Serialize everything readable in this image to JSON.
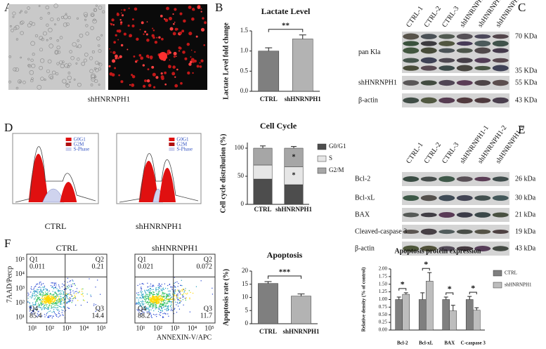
{
  "panels": {
    "A": {
      "label": "A",
      "caption": "shHNRNPH1"
    },
    "B": {
      "label": "B"
    },
    "C": {
      "label": "C",
      "lanes": [
        "CTRL-1",
        "CTRL-2",
        "CTRL-3",
        "shHNRNPH1-1",
        "shHNRNPH1-2",
        "shHNRNPH1-3"
      ],
      "rows": [
        "pan Kla",
        "shHNRNPH1",
        "β-actin"
      ],
      "sizes": [
        "70 KDa",
        "35 KDa",
        "55 KDa",
        "43 KDa"
      ]
    },
    "D": {
      "label": "D",
      "legend": [
        "G0G1",
        "G2M",
        "S-Phase"
      ],
      "captions": [
        "CTRL",
        "shHNRNPH1"
      ]
    },
    "E": {
      "label": "E",
      "lanes": [
        "CTRL-1",
        "CTRL-2",
        "CTRL-3",
        "shHNRNPH1-1",
        "shHNRNPH1-2",
        "shHNRNPH1-3"
      ],
      "rows": [
        "Bcl-2",
        "Bcl-xL",
        "BAX",
        "Cleaved-caspase 3",
        "β-actin"
      ],
      "sizes": [
        "26 kDa",
        "30 kDa",
        "21 kDa",
        "19 kDa",
        "43 kDa"
      ]
    },
    "F": {
      "label": "F",
      "ylabel": "7AAD/Percp",
      "xlabel": "ANNEXIN-V/APC",
      "ticks": [
        "10¹",
        "10²",
        "10³",
        "10⁴",
        "10⁵"
      ],
      "plots": [
        {
          "title": "CTRL",
          "quadrants": [
            [
              "Q1",
              0.011
            ],
            [
              "Q2",
              0.21
            ],
            [
              "Q3",
              14.4
            ],
            [
              "Q4",
              85.4
            ]
          ]
        },
        {
          "title": "shHNRNPH1",
          "quadrants": [
            [
              "Q1",
              0.021
            ],
            [
              "Q2",
              0.072
            ],
            [
              "Q3",
              11.7
            ],
            [
              "Q4",
              88.2
            ]
          ]
        }
      ]
    }
  },
  "chart_data": [
    {
      "type": "bar",
      "title": "Lactate Level",
      "ylabel": "Lactate Level fold change",
      "categories": [
        "CTRL",
        "shHNRNPH1"
      ],
      "values": [
        1.0,
        1.3
      ],
      "errors": [
        0.08,
        0.1
      ],
      "colors": [
        "#7f7f7f",
        "#b3b3b3"
      ],
      "ylim": [
        0,
        1.5
      ],
      "yticks": [
        {
          "value": 0,
          "label": "0.0"
        },
        {
          "value": 0.5,
          "label": "0.5"
        },
        {
          "value": 1,
          "label": "1.0"
        },
        {
          "value": 1.5,
          "label": "1.5"
        }
      ],
      "annotation": "**"
    },
    {
      "type": "stacked_bar",
      "title": "Cell Cycle",
      "ylabel": "Cell cycle distribution (%)",
      "categories": [
        "CTRL",
        "shHNRNPH1"
      ],
      "series": [
        {
          "name": "G0/G1",
          "color": "#4d4d4d",
          "values": [
            45,
            35
          ],
          "errors": [
            3,
            3
          ]
        },
        {
          "name": "S",
          "color": "#e6e6e6",
          "values": [
            25,
            32
          ],
          "errors": [
            4,
            3
          ]
        },
        {
          "name": "G2/M",
          "color": "#a6a6a6",
          "values": [
            30,
            33
          ],
          "errors": [
            4,
            3
          ]
        }
      ],
      "ylim": [
        0,
        110
      ],
      "yticks": [
        0,
        50,
        100
      ],
      "annotations": [
        {
          "text": "*",
          "category": "shHNRNPH1",
          "series": "S"
        },
        {
          "text": "*",
          "category": "shHNRNPH1",
          "series": "G2/M"
        }
      ]
    },
    {
      "type": "bar",
      "title": "Apoptosis",
      "ylabel": "Apoptosis rate (%)",
      "categories": [
        "CTRL",
        "shHNRNPH1"
      ],
      "values": [
        15.3,
        10.5
      ],
      "errors": [
        0.7,
        0.8
      ],
      "colors": [
        "#7f7f7f",
        "#b3b3b3"
      ],
      "ylim": [
        0,
        20
      ],
      "yticks": [
        0,
        5,
        10,
        15,
        20
      ],
      "annotation": "***"
    },
    {
      "type": "grouped_bar",
      "title": "Apoptosis protein expression",
      "ylabel": "Relative density (% of control)",
      "categories": [
        "Bcl-2",
        "Bcl-xL",
        "BAX",
        "C-caspase 3"
      ],
      "series": [
        {
          "name": "CTRL",
          "color": "#7f7f7f",
          "values": [
            1.0,
            1.0,
            1.0,
            1.0
          ],
          "errors": [
            0.08,
            0.22,
            0.08,
            0.1
          ]
        },
        {
          "name": "shHNRNPH1",
          "color": "#bdbdbd",
          "values": [
            1.17,
            1.6,
            0.63,
            0.65
          ],
          "errors": [
            0.05,
            0.28,
            0.18,
            0.08
          ]
        }
      ],
      "ylim": [
        0,
        2
      ],
      "yticks": [
        {
          "value": 0,
          "label": "0.00"
        },
        {
          "value": 0.25,
          "label": "0.25"
        },
        {
          "value": 0.5,
          "label": "0.50"
        },
        {
          "value": 0.75,
          "label": "0.75"
        },
        {
          "value": 1,
          "label": "1.00"
        },
        {
          "value": 1.25,
          "label": "1.25"
        },
        {
          "value": 1.5,
          "label": "1.50"
        },
        {
          "value": 1.75,
          "label": "1.75"
        },
        {
          "value": 2,
          "label": "2.00"
        }
      ],
      "annotations": [
        "*",
        "*",
        "*",
        "*"
      ]
    }
  ]
}
